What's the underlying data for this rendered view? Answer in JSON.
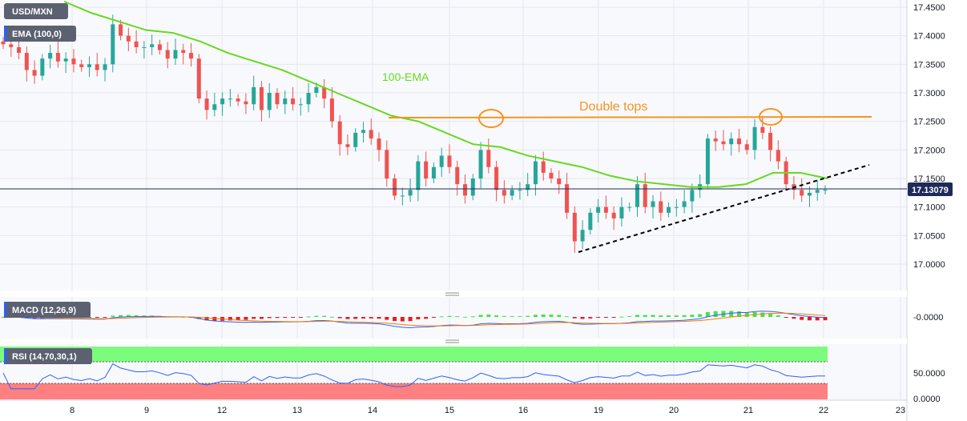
{
  "chart_data": {
    "type": "candlestick",
    "symbol": "USD/MXN",
    "price_axis": {
      "ticks": [
        "17.4500",
        "17.4000",
        "17.3500",
        "17.3000",
        "17.2500",
        "17.2000",
        "17.1500",
        "17.1000",
        "17.0500",
        "17.0000"
      ],
      "ylim": [
        16.955,
        17.462
      ],
      "current_price": "17.13079",
      "current_price_value": 17.13079
    },
    "x_ticks": [
      "8",
      "9",
      "12",
      "13",
      "14",
      "15",
      "16",
      "19",
      "20",
      "21",
      "22",
      "23"
    ],
    "close_series": [
      17.385,
      17.38,
      17.37,
      17.34,
      17.33,
      17.36,
      17.37,
      17.355,
      17.36,
      17.35,
      17.345,
      17.35,
      17.34,
      17.35,
      17.42,
      17.4,
      17.39,
      17.38,
      17.38,
      17.385,
      17.375,
      17.36,
      17.375,
      17.37,
      17.36,
      17.29,
      17.27,
      17.28,
      17.29,
      17.29,
      17.285,
      17.28,
      17.31,
      17.27,
      17.3,
      17.28,
      17.29,
      17.28,
      17.28,
      17.3,
      17.31,
      17.29,
      17.25,
      17.21,
      17.205,
      17.23,
      17.235,
      17.22,
      17.2,
      17.15,
      17.12,
      17.12,
      17.13,
      17.18,
      17.15,
      17.17,
      17.19,
      17.17,
      17.14,
      17.12,
      17.15,
      17.2,
      17.17,
      17.13,
      17.12,
      17.13,
      17.13,
      17.14,
      17.18,
      17.16,
      17.15,
      17.14,
      17.09,
      17.04,
      17.06,
      17.09,
      17.1,
      17.09,
      17.08,
      17.1,
      17.1,
      17.14,
      17.1,
      17.11,
      17.09,
      17.1,
      17.1,
      17.11,
      17.13,
      17.14,
      17.22,
      17.215,
      17.21,
      17.22,
      17.21,
      17.2,
      17.24,
      17.23,
      17.2,
      17.18,
      17.14,
      17.13,
      17.12,
      17.125,
      17.13,
      17.13
    ],
    "series": [
      {
        "name": "100-EMA",
        "values": [
          17.46,
          17.44,
          17.425,
          17.41,
          17.405,
          17.39,
          17.37,
          17.355,
          17.34,
          17.32,
          17.3,
          17.28,
          17.26,
          17.25,
          17.23,
          17.21,
          17.205,
          17.19,
          17.18,
          17.17,
          17.155,
          17.145,
          17.14,
          17.135,
          17.135,
          17.14,
          17.16,
          17.16,
          17.15
        ]
      }
    ],
    "annotations": [
      {
        "text": "100-EMA"
      },
      {
        "text": "Double tops",
        "level": 17.257
      },
      {
        "type": "support-line",
        "style": "dashed",
        "from": 17.02,
        "to": 17.175
      }
    ],
    "indicators": {
      "ema": {
        "label": "EMA (100,0)"
      },
      "macd": {
        "label": "MACD (12,26,9)",
        "tick": "-0.0000"
      },
      "rsi": {
        "label": "RSI (14,70,30,1)",
        "ticks": [
          "50.0000",
          "0.0000"
        ],
        "upper": 70,
        "lower": 30
      }
    },
    "colors": {
      "up": "#26a69a",
      "down": "#ef5350",
      "ema": "#66d91f",
      "annotation": "#f7941d",
      "macd_line": "#2962ff",
      "signal_line": "#f57c00",
      "rsi_line": "#2962ff",
      "overbought": "#7cfc7c",
      "oversold": "#ff8080"
    }
  }
}
